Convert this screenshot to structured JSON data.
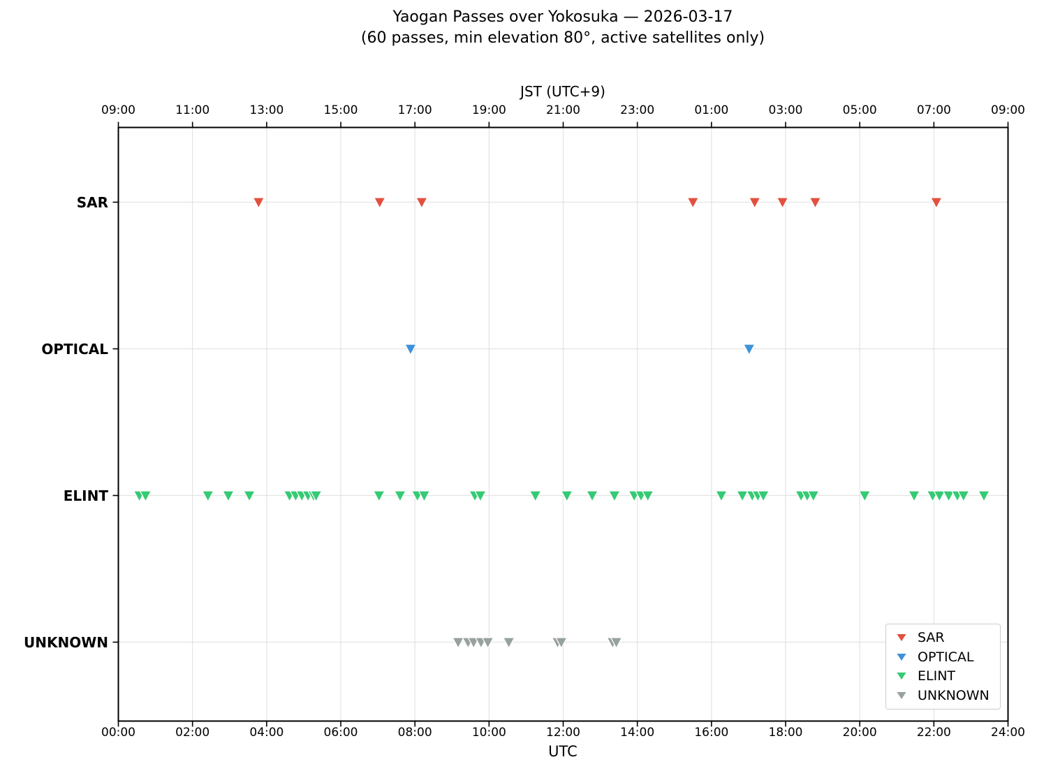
{
  "title": "Yaogan Passes over Yokosuka — 2026-03-17",
  "subtitle": "(60 passes, min elevation 80°, active satellites only)",
  "axes": {
    "top_label": "JST (UTC+9)",
    "bottom_label": "UTC",
    "top_ticks": [
      "09:00",
      "11:00",
      "13:00",
      "15:00",
      "17:00",
      "19:00",
      "21:00",
      "23:00",
      "01:00",
      "03:00",
      "05:00",
      "07:00",
      "09:00"
    ],
    "bottom_ticks": [
      "00:00",
      "02:00",
      "04:00",
      "06:00",
      "08:00",
      "10:00",
      "12:00",
      "14:00",
      "16:00",
      "18:00",
      "20:00",
      "22:00",
      "24:00"
    ]
  },
  "colors": {
    "background": "#ffffff",
    "grid": "#e3e3e3",
    "spine": "#000000",
    "sar": "#e4503f",
    "optical": "#3e92d9",
    "elint": "#35ca74",
    "unknown": "#97a1a0"
  },
  "chart_data": {
    "type": "scatter",
    "marker": "triangle-down",
    "title": "Yaogan Passes over Yokosuka — 2026-03-17",
    "subtitle": "(60 passes, min elevation 80°, active satellites only)",
    "xlabel_bottom": "UTC",
    "xlabel_top": "JST (UTC+9)",
    "x_unit": "time of day, UTC (top axis shows JST = UTC+9)",
    "x_range_hours": [
      0,
      24
    ],
    "grid": true,
    "legend_position": "lower right",
    "total_passes": 60,
    "categories": [
      "SAR",
      "OPTICAL",
      "ELINT",
      "UNKNOWN"
    ],
    "series": [
      {
        "name": "SAR",
        "category": "SAR",
        "color": "#e4503f",
        "times_utc": [
          "03:47",
          "07:03",
          "08:11",
          "15:30",
          "17:10",
          "17:55",
          "18:48",
          "22:04"
        ]
      },
      {
        "name": "OPTICAL",
        "category": "OPTICAL",
        "color": "#3e92d9",
        "times_utc": [
          "07:53",
          "17:01"
        ]
      },
      {
        "name": "ELINT",
        "category": "ELINT",
        "color": "#35ca74",
        "times_utc": [
          "00:34",
          "00:44",
          "02:25",
          "02:58",
          "03:32",
          "04:37",
          "04:47",
          "04:57",
          "05:07",
          "05:16",
          "05:20",
          "07:02",
          "07:36",
          "08:04",
          "08:15",
          "09:37",
          "09:46",
          "11:15",
          "12:06",
          "12:47",
          "13:23",
          "13:55",
          "14:06",
          "14:17",
          "16:16",
          "16:50",
          "17:06",
          "17:15",
          "17:24",
          "18:25",
          "18:35",
          "18:45",
          "20:08",
          "21:28",
          "21:58",
          "22:09",
          "22:24",
          "22:38",
          "22:48",
          "23:21"
        ]
      },
      {
        "name": "UNKNOWN",
        "category": "UNKNOWN",
        "color": "#97a1a0",
        "times_utc": [
          "09:10",
          "09:26",
          "09:35",
          "09:47",
          "09:58",
          "10:32",
          "11:51",
          "11:57",
          "13:20",
          "13:26"
        ]
      }
    ]
  }
}
